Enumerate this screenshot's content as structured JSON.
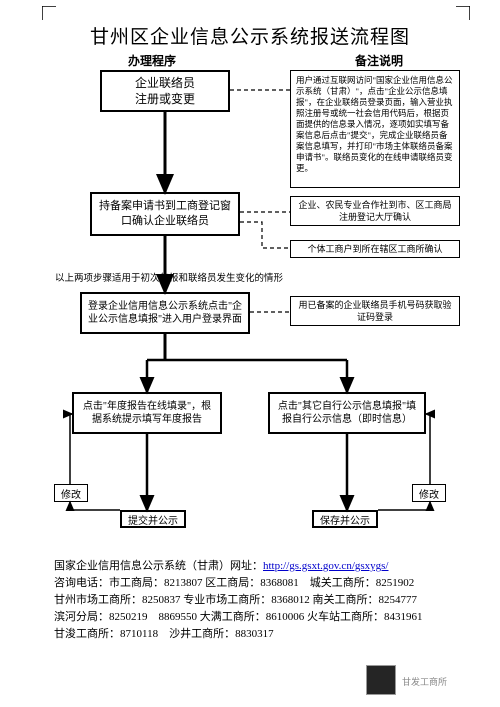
{
  "title": "甘州区企业信息公示系统报送流程图",
  "colLeft": "办理程序",
  "colRight": "备注说明",
  "nodes": {
    "n1": "企业联络员\n注册或变更",
    "r1": "用户通过互联网访问\"国家企业信用信息公示系统（甘肃）\"，点击\"企业公示信息填报\"，在企业联络员登录页面，输入营业执照注册号或统一社会信用代码后，根据页面提供的信息录入情况，逐项如实填写备案信息后点击\"提交\"，完成企业联络员备案信息填写，并打印\"市场主体联络员备案申请书\"。联络员变化的在线申请联络员变更。",
    "n2": "持备案申请书到工商登记窗口确认企业联络员",
    "r2a": "企业、农民专业合作社到市、区工商局注册登记大厅确认",
    "r2b": "个体工商户到所在辖区工商所确认",
    "note2": "以上两项步骤适用于初次年报和联络员发生变化的情形",
    "n3": "登录企业信用信息公示系统点击\"企业公示信息填报\"进入用户登录界面",
    "r3": "用已备案的企业联络员手机号码获取验证码登录",
    "n4": "点击\"年度报告在线填录\"，根据系统提示填写年度报告",
    "n5": "点击\"其它自行公示信息填报\"填报自行公示信息（即时信息）",
    "modL": "修改",
    "modR": "修改",
    "subL": "提交并公示",
    "subR": "保存并公示"
  },
  "footer": {
    "l1a": "国家企业信用信息公示系统（甘肃）网址：",
    "l1b": "http://gs.gsxt.gov.cn/gsxygs/",
    "l2": "咨询电话：市工商局：8213807 区工商局：8368081　城关工商所：8251902",
    "l3": "甘州市场工商所：8250837 专业市场工商所：8368012 南关工商所：8254777",
    "l4": "滨河分局：8250219　8869550 大满工商所：8610006 火车站工商所：8431961",
    "l5": "甘浚工商所：8710118　沙井工商所：8830317"
  },
  "brand": "甘发工商所",
  "colors": {
    "stroke": "#000000",
    "bg": "#ffffff",
    "link": "#0000cc"
  }
}
